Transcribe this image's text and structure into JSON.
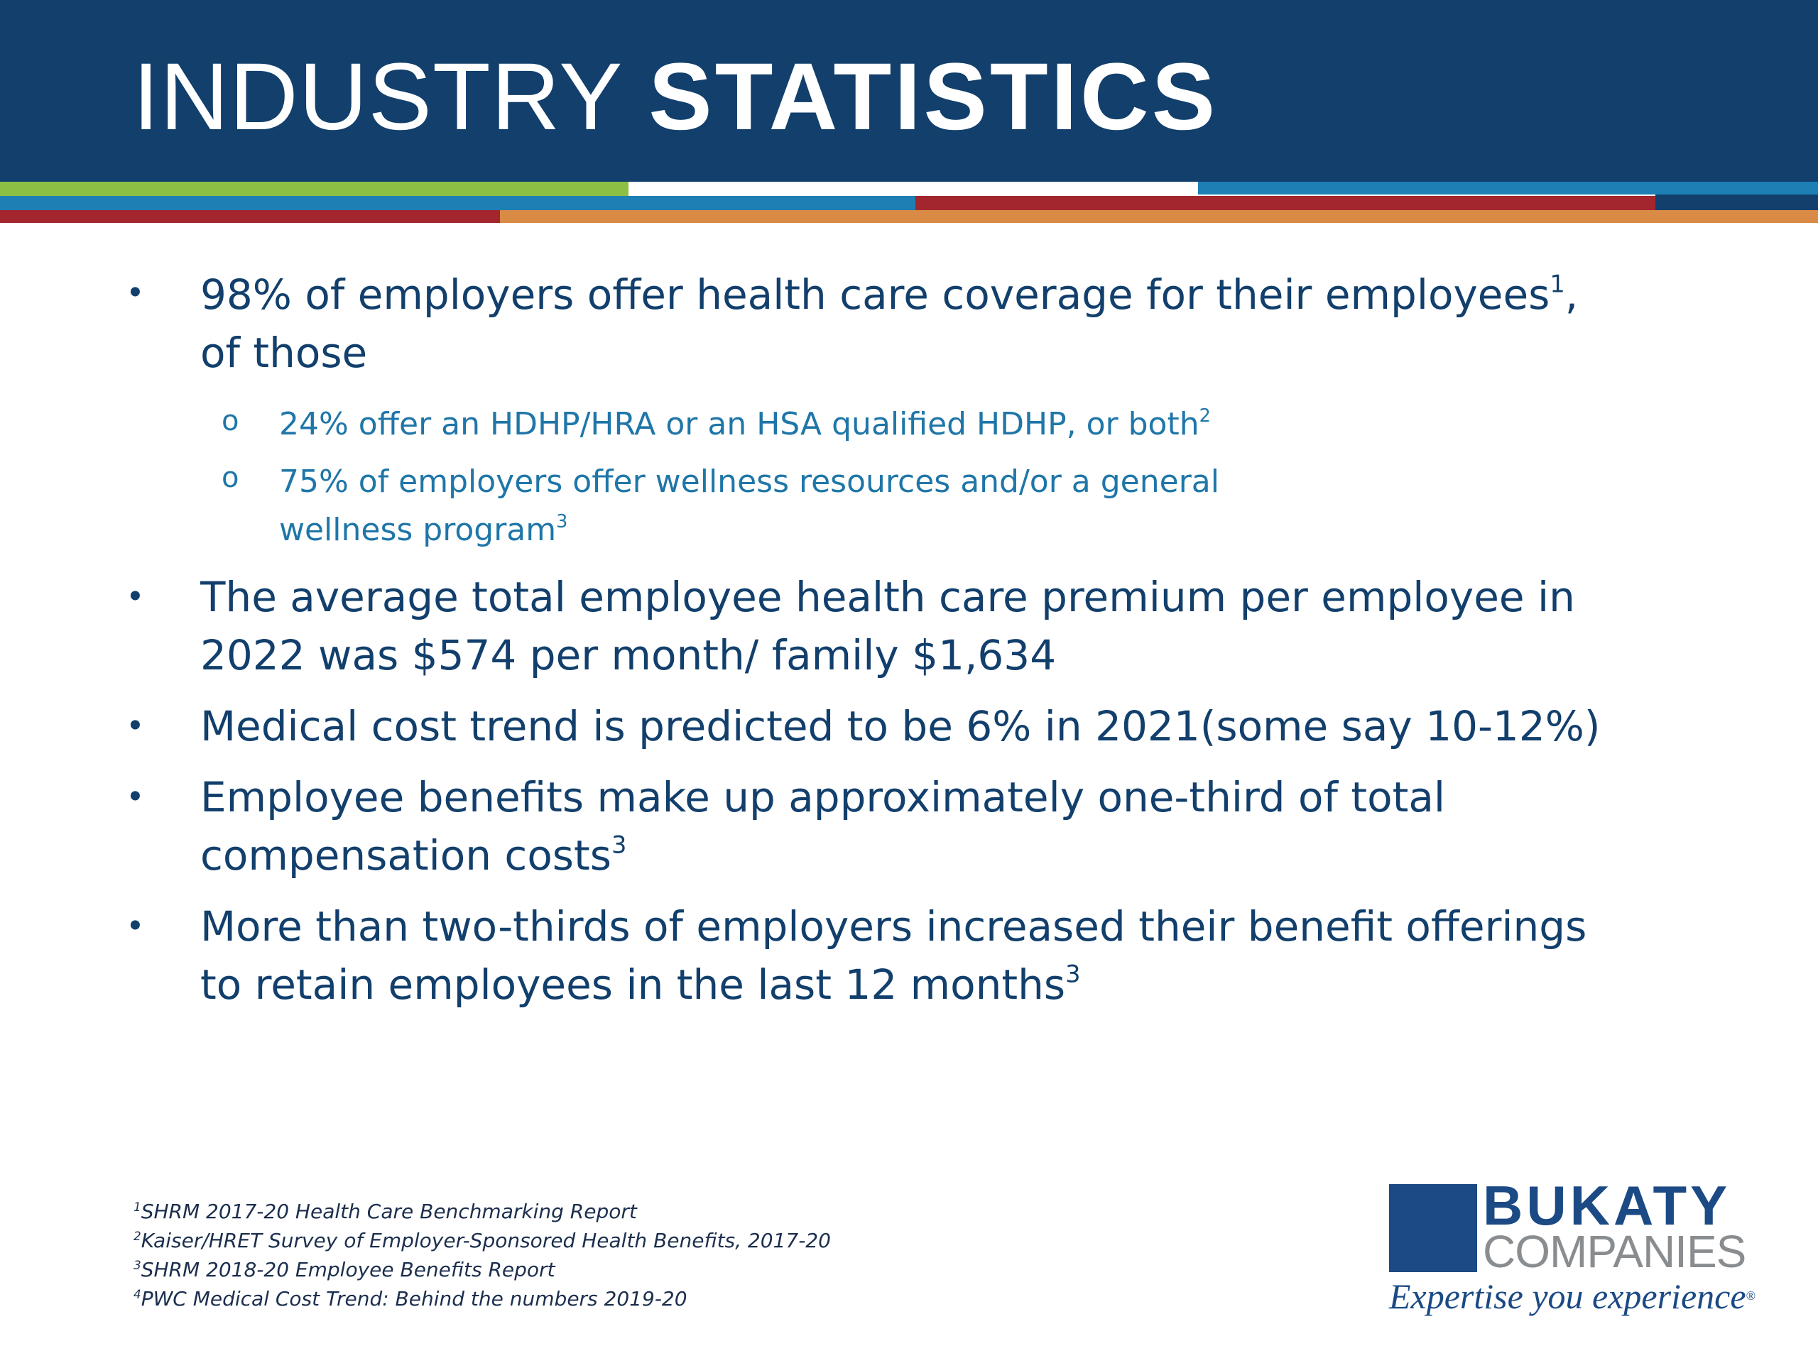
{
  "header": {
    "title_light": "INDUSTRY",
    "title_bold": "STATISTICS",
    "background_color": "#123f6c",
    "stripe_colors": [
      "#8dbf45",
      "#1e7fb5",
      "#a3262f",
      "#d98a44"
    ]
  },
  "bullets": [
    {
      "text": "98% of employers offer health care coverage for their employees",
      "sup": "1",
      "tail": ",",
      "line2": "of those",
      "sub_items": [
        {
          "text": "24% offer an HDHP/HRA or an HSA qualified HDHP, or both",
          "sup": "2"
        },
        {
          "line1": "75% of employers offer wellness resources and/or a general",
          "line2": "wellness program",
          "sup": "3"
        }
      ]
    },
    {
      "line1": "The average total employee health care premium per employee in",
      "line2": "2022 was $574 per month/ family $1,634"
    },
    {
      "line1": "Medical cost trend is predicted to be 6% in 2021(some say 10-12%)"
    },
    {
      "line1": "Employee benefits make up approximately one-third of total",
      "line2": "compensation costs",
      "sup": "3"
    },
    {
      "line1": "More than two-thirds of employers increased their benefit offerings",
      "line2": "to retain employees in the last 12 months",
      "sup": "3"
    }
  ],
  "bullet_glyph": "•",
  "sub_bullet_glyph": "o",
  "footnotes": [
    {
      "num": "1",
      "text": "SHRM 2017-20 Health Care Benchmarking Report"
    },
    {
      "num": "2",
      "text": "Kaiser/HRET Survey of Employer-Sponsored Health Benefits, 2017-20"
    },
    {
      "num": "3",
      "text": "SHRM 2018-20 Employee Benefits Report"
    },
    {
      "num": "4",
      "text": "PWC Medical Cost Trend: Behind the numbers 2019-20"
    }
  ],
  "logo": {
    "name_bold": "BUKATY",
    "name_light": "COMPANIES",
    "tagline": "Expertise you experience",
    "tagline_mark": "®",
    "brand_color": "#1b4a85"
  }
}
